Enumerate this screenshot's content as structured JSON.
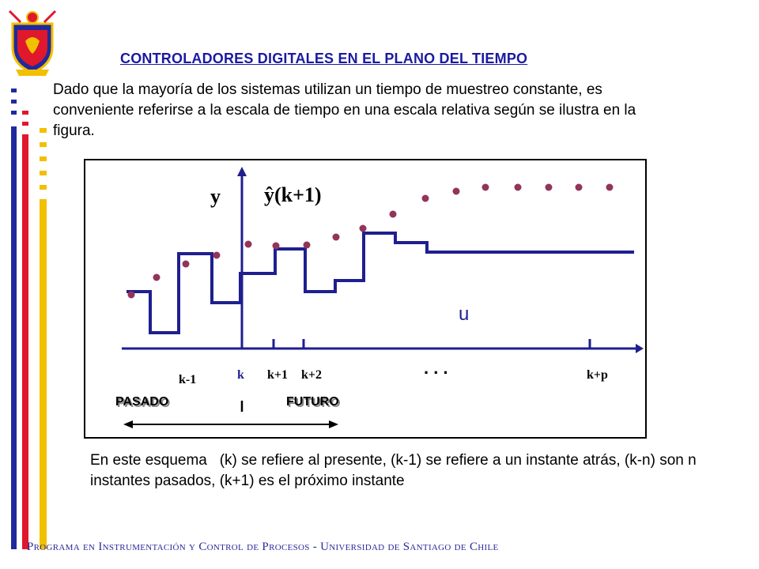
{
  "slide": {
    "title": "CONTROLADORES DIGITALES EN EL PLANO DEL TIEMPO",
    "intro": "Dado que la mayoría de los sistemas utilizan un tiempo de muestreo constante, es conveniente referirse a la escala de tiempo en una escala relativa según se ilustra en la figura.",
    "outro": "En este esquema   (k) se refiere al presente, (k-1) se refiere a un instante atrás, (k-n) son n instantes pasados, (k+1) es el próximo instante",
    "footer": "Programa en Instrumentación y Control de Procesos - Universidad de Santiago de Chile"
  },
  "figure": {
    "y_label": "y",
    "yhat_label": "ŷ(k+1)",
    "u_label": "u",
    "ticks": {
      "k_minus_1": "k-1",
      "k": "k",
      "k_plus_1": "k+1",
      "k_plus_2": "k+2",
      "dots": ". . .",
      "k_plus_p": "k+p"
    },
    "past_label": "PASADO",
    "future_label": "FUTURO"
  },
  "colors": {
    "title": "#1a1aa0",
    "step_line": "#1f1f8f",
    "dots": "#93345a",
    "bar_blue": "#1f2a9c",
    "bar_red": "#e0182d",
    "bar_yellow": "#f2c000",
    "footer": "#2a2a99"
  }
}
